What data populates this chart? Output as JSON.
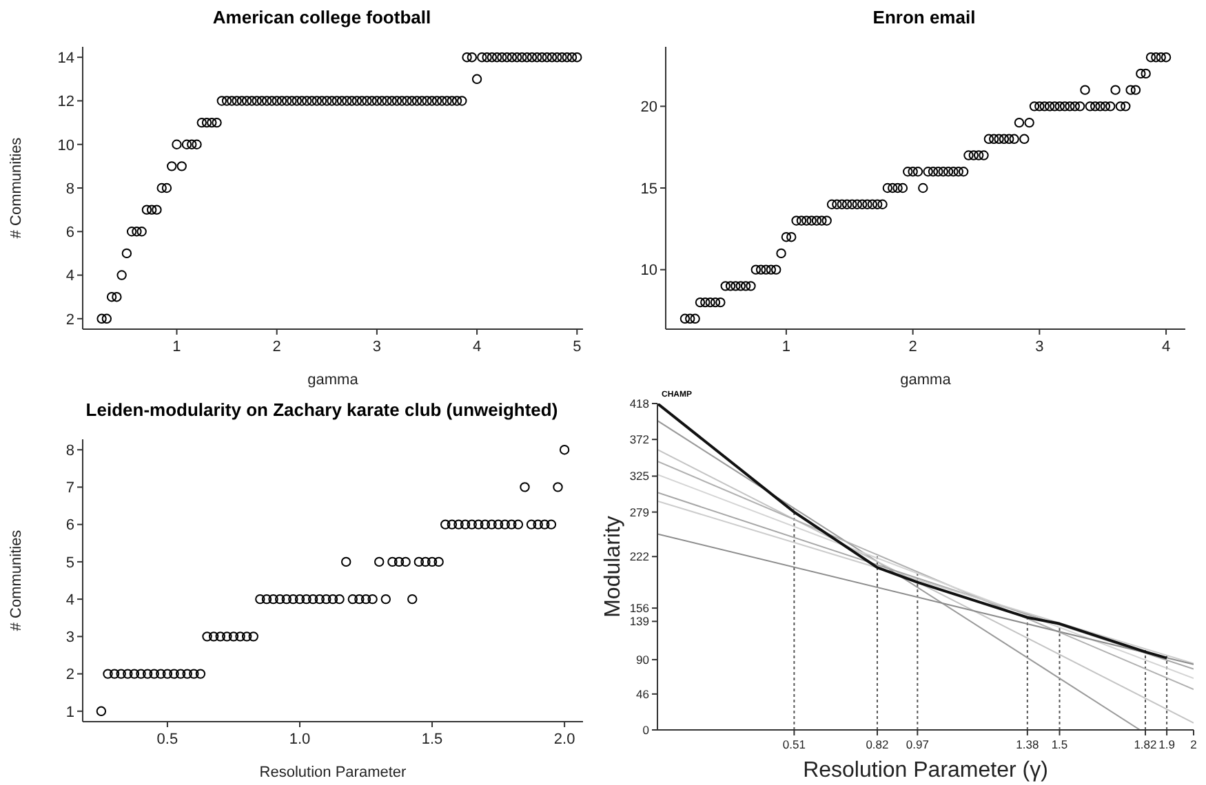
{
  "chart_data": [
    {
      "type": "scatter",
      "title": "American college football",
      "xlabel": "gamma",
      "ylabel": "# Communities",
      "marker": "circle",
      "xlim": [
        0.06,
        5.06
      ],
      "xticks": [
        1,
        2,
        3,
        4,
        5
      ],
      "ylim": [
        1.52,
        14.48
      ],
      "yticks": [
        2,
        4,
        6,
        8,
        10,
        12,
        14
      ],
      "x": [
        0.25,
        0.3,
        0.35,
        0.4,
        0.45,
        0.5,
        0.55,
        0.6,
        0.65,
        0.7,
        0.75,
        0.8,
        0.85,
        0.9,
        0.95,
        1,
        1.05,
        1.1,
        1.15,
        1.2,
        1.25,
        1.3,
        1.35,
        1.4,
        1.45,
        1.5,
        1.55,
        1.6,
        1.65,
        1.7,
        1.75,
        1.8,
        1.85,
        1.9,
        1.95,
        2,
        2.05,
        2.1,
        2.15,
        2.2,
        2.25,
        2.3,
        2.35,
        2.4,
        2.45,
        2.5,
        2.55,
        2.6,
        2.65,
        2.7,
        2.75,
        2.8,
        2.85,
        2.9,
        2.95,
        3,
        3.05,
        3.1,
        3.15,
        3.2,
        3.25,
        3.3,
        3.35,
        3.4,
        3.45,
        3.5,
        3.55,
        3.6,
        3.65,
        3.7,
        3.75,
        3.8,
        3.85,
        3.9,
        3.95,
        4,
        4.05,
        4.1,
        4.15,
        4.2,
        4.25,
        4.3,
        4.35,
        4.4,
        4.45,
        4.5,
        4.55,
        4.6,
        4.65,
        4.7,
        4.75,
        4.8,
        4.85,
        4.9,
        4.95,
        5
      ],
      "series": [
        {
          "color": "#000000",
          "values": [
            2,
            2,
            3,
            3,
            4,
            5,
            6,
            6,
            6,
            7,
            7,
            7,
            8,
            8,
            9,
            10,
            9,
            10,
            10,
            10,
            11,
            11,
            11,
            11,
            12,
            12,
            12,
            12,
            12,
            12,
            12,
            12,
            12,
            12,
            12,
            12,
            12,
            12,
            12,
            12,
            12,
            12,
            12,
            12,
            12,
            12,
            12,
            12,
            12,
            12,
            12,
            12,
            12,
            12,
            12,
            12,
            12,
            12,
            12,
            12,
            12,
            12,
            12,
            12,
            12,
            12,
            12,
            12,
            12,
            12,
            12,
            12,
            12,
            14,
            14,
            13,
            14,
            14,
            14,
            14,
            14,
            14,
            14,
            14,
            14,
            14,
            14,
            14,
            14,
            14,
            14,
            14,
            14,
            14,
            14,
            14
          ]
        }
      ]
    },
    {
      "type": "scatter",
      "title": "Enron email",
      "xlabel": "gamma",
      "marker": "circle",
      "xlim": [
        0.048,
        4.152
      ],
      "xticks": [
        1,
        2,
        3,
        4
      ],
      "ylim": [
        6.36,
        23.64
      ],
      "yticks": [
        10,
        15,
        20
      ],
      "x": [
        0.2,
        0.24,
        0.28,
        0.32,
        0.36,
        0.4,
        0.44,
        0.48,
        0.52,
        0.56,
        0.6,
        0.64,
        0.68,
        0.72,
        0.76,
        0.8,
        0.84,
        0.88,
        0.92,
        0.96,
        1,
        1.04,
        1.08,
        1.12,
        1.16,
        1.2,
        1.24,
        1.28,
        1.32,
        1.36,
        1.4,
        1.44,
        1.48,
        1.52,
        1.56,
        1.6,
        1.64,
        1.68,
        1.72,
        1.76,
        1.8,
        1.84,
        1.88,
        1.92,
        1.96,
        2,
        2.04,
        2.08,
        2.12,
        2.16,
        2.2,
        2.24,
        2.28,
        2.32,
        2.36,
        2.4,
        2.44,
        2.48,
        2.52,
        2.56,
        2.6,
        2.64,
        2.68,
        2.72,
        2.76,
        2.8,
        2.84,
        2.88,
        2.92,
        2.96,
        3,
        3.04,
        3.08,
        3.12,
        3.16,
        3.2,
        3.24,
        3.28,
        3.32,
        3.36,
        3.4,
        3.44,
        3.48,
        3.52,
        3.56,
        3.6,
        3.64,
        3.68,
        3.72,
        3.76,
        3.8,
        3.84,
        3.88,
        3.92,
        3.96,
        4
      ],
      "series": [
        {
          "color": "#000000",
          "values": [
            7,
            7,
            7,
            8,
            8,
            8,
            8,
            8,
            9,
            9,
            9,
            9,
            9,
            9,
            10,
            10,
            10,
            10,
            10,
            11,
            12,
            12,
            13,
            13,
            13,
            13,
            13,
            13,
            13,
            14,
            14,
            14,
            14,
            14,
            14,
            14,
            14,
            14,
            14,
            14,
            15,
            15,
            15,
            15,
            16,
            16,
            16,
            15,
            16,
            16,
            16,
            16,
            16,
            16,
            16,
            16,
            17,
            17,
            17,
            17,
            18,
            18,
            18,
            18,
            18,
            18,
            19,
            18,
            19,
            20,
            20,
            20,
            20,
            20,
            20,
            20,
            20,
            20,
            20,
            21,
            20,
            20,
            20,
            20,
            20,
            21,
            20,
            20,
            21,
            21,
            22,
            22,
            23,
            23,
            23,
            23
          ]
        }
      ]
    },
    {
      "type": "scatter",
      "title": "Leiden-modularity on Zachary karate club (unweighted)",
      "xlabel": "Resolution Parameter",
      "ylabel": "# Communities",
      "marker": "circle",
      "xlim": [
        0.18,
        2.07
      ],
      "xticks": [
        {
          "value": 0.5,
          "label": "0.5"
        },
        {
          "value": 1,
          "label": "1.0"
        },
        {
          "value": 1.5,
          "label": "1.5"
        },
        {
          "value": 2,
          "label": "2.0"
        }
      ],
      "ylim": [
        0.72,
        8.28
      ],
      "yticks": [
        1,
        2,
        3,
        4,
        5,
        6,
        7,
        8
      ],
      "x": [
        0.25,
        0.275,
        0.3,
        0.325,
        0.35,
        0.375,
        0.4,
        0.425,
        0.45,
        0.475,
        0.5,
        0.525,
        0.55,
        0.575,
        0.6,
        0.625,
        0.65,
        0.675,
        0.7,
        0.725,
        0.75,
        0.775,
        0.8,
        0.825,
        0.85,
        0.875,
        0.9,
        0.925,
        0.95,
        0.975,
        1,
        1.025,
        1.05,
        1.075,
        1.1,
        1.125,
        1.15,
        1.175,
        1.2,
        1.225,
        1.25,
        1.275,
        1.3,
        1.325,
        1.35,
        1.375,
        1.4,
        1.425,
        1.45,
        1.475,
        1.5,
        1.525,
        1.55,
        1.575,
        1.6,
        1.625,
        1.65,
        1.675,
        1.7,
        1.725,
        1.75,
        1.775,
        1.8,
        1.825,
        1.85,
        1.875,
        1.9,
        1.925,
        1.95,
        1.975,
        2
      ],
      "series": [
        {
          "color": "#000000",
          "values": [
            1,
            2,
            2,
            2,
            2,
            2,
            2,
            2,
            2,
            2,
            2,
            2,
            2,
            2,
            2,
            2,
            3,
            3,
            3,
            3,
            3,
            3,
            3,
            3,
            4,
            4,
            4,
            4,
            4,
            4,
            4,
            4,
            4,
            4,
            4,
            4,
            4,
            5,
            4,
            4,
            4,
            4,
            5,
            4,
            5,
            5,
            5,
            4,
            5,
            5,
            5,
            5,
            6,
            6,
            6,
            6,
            6,
            6,
            6,
            6,
            6,
            6,
            6,
            6,
            7,
            6,
            6,
            6,
            6,
            7,
            8
          ]
        }
      ]
    },
    {
      "type": "line",
      "xlabel": "Resolution Parameter (γ)",
      "ylabel": "Modularity",
      "annotations": [
        "CHAMP"
      ],
      "line_style": "solid",
      "xlim": [
        0,
        2
      ],
      "xticks": [
        0.51,
        0.82,
        0.97,
        1.38,
        1.5,
        1.82,
        1.9,
        2
      ],
      "ylim": [
        0,
        418
      ],
      "yticks": [
        0,
        46,
        90,
        139,
        156,
        222,
        279,
        325,
        372,
        418
      ],
      "series": [
        {
          "color": "#9a9a9a",
          "x": [
            0,
            1.8
          ],
          "values": [
            396,
            0
          ]
        },
        {
          "color": "#c4c4c4",
          "x": [
            0,
            2
          ],
          "values": [
            359,
            9
          ]
        },
        {
          "color": "#b0b0b0",
          "x": [
            0,
            2
          ],
          "values": [
            344,
            52
          ]
        },
        {
          "color": "#d4d4d4",
          "x": [
            0,
            2
          ],
          "values": [
            327,
            66
          ]
        },
        {
          "color": "#a6a6a6",
          "x": [
            0,
            2
          ],
          "values": [
            304,
            78
          ]
        },
        {
          "color": "#cccccc",
          "x": [
            0,
            2
          ],
          "values": [
            293,
            85
          ]
        },
        {
          "color": "#8c8c8c",
          "x": [
            0,
            2
          ],
          "values": [
            251,
            84
          ]
        },
        {
          "color": "#111111",
          "x": [
            0,
            0.51,
            0.82,
            0.97,
            1.38,
            1.5,
            1.82,
            1.9
          ],
          "values": [
            418,
            279,
            208,
            189,
            144,
            136,
            100,
            92
          ]
        }
      ],
      "ref_lines": [
        {
          "axis": "x",
          "value": 0.51,
          "line_style": "dotted",
          "color": "#555555"
        },
        {
          "axis": "x",
          "value": 0.82,
          "line_style": "dotted",
          "color": "#555555"
        },
        {
          "axis": "x",
          "value": 0.97,
          "line_style": "dotted",
          "color": "#555555"
        },
        {
          "axis": "x",
          "value": 1.38,
          "line_style": "dotted",
          "color": "#555555"
        },
        {
          "axis": "x",
          "value": 1.5,
          "line_style": "dotted",
          "color": "#555555"
        },
        {
          "axis": "x",
          "value": 1.82,
          "line_style": "dotted",
          "color": "#555555"
        },
        {
          "axis": "x",
          "value": 1.9,
          "line_style": "dotted",
          "color": "#555555"
        }
      ]
    }
  ]
}
